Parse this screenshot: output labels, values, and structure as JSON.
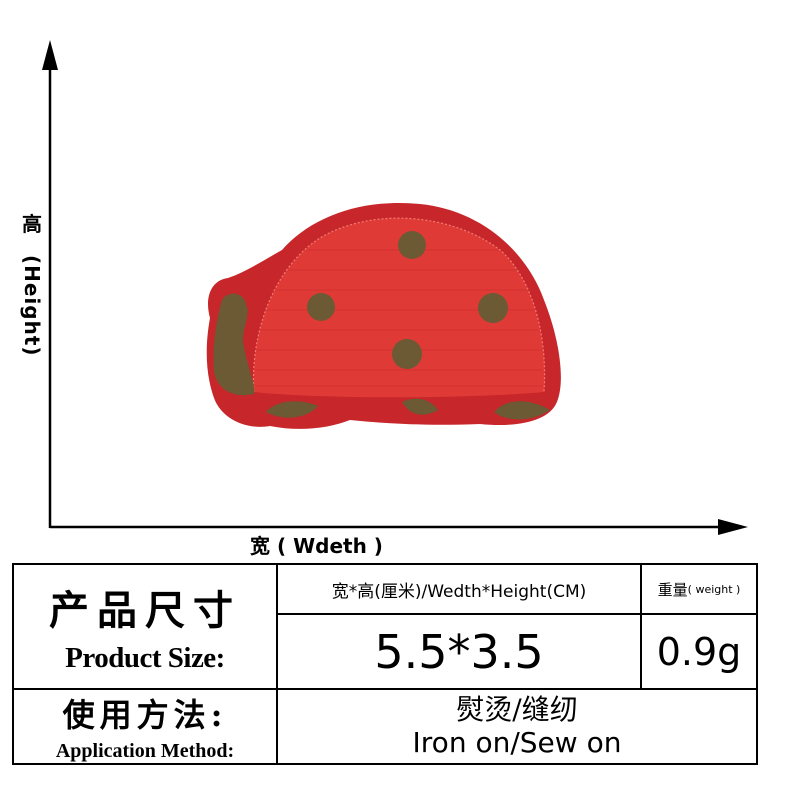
{
  "axes": {
    "height_label_zh": "高",
    "height_label_en": "(Height)",
    "width_label": "宽 ( Wdeth )"
  },
  "colors": {
    "patch_red": "#e03a36",
    "felt_red": "#c7262b",
    "spot_olive": "#6b5a34",
    "axis": "#000000"
  },
  "spec": {
    "size_label_zh": "产品尺寸",
    "size_label_en": "Product Size:",
    "dimension_header": "宽*高(厘米)/Wedth*Height(CM)",
    "weight_header_zh": "重量",
    "weight_header_en": "( weight )",
    "size_value": "5.5*3.5",
    "weight_value": "0.9g",
    "method_label_zh": "使用方法:",
    "method_label_en": "Application Method:",
    "method_value_zh": "熨烫/缝纫",
    "method_value_en": "Iron on/Sew on"
  }
}
